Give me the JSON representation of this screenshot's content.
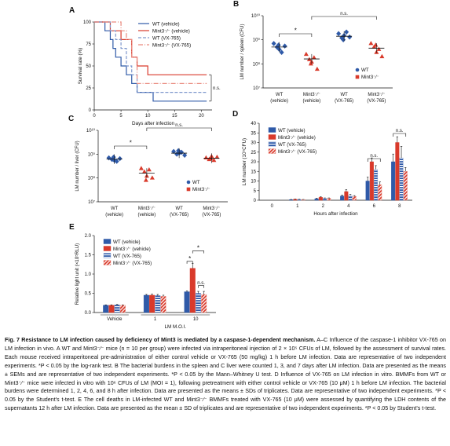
{
  "colors": {
    "wt": "#2f5aa8",
    "mint": "#d93a2b",
    "wt_vx": "#7e97cc",
    "mint_vx": "#e98a7f",
    "hatch": "#ffffff"
  },
  "panels": {
    "A": "A",
    "B": "B",
    "C": "C",
    "D": "D",
    "E": "E"
  },
  "panelA": {
    "ylabel": "Survival rate (%)",
    "xlabel": "Days after infection",
    "ns": "n.s.",
    "legend": [
      "WT (vehicle)",
      "Mint3⁻⁄⁻ (vehicle)",
      "WT (VX-765)",
      "Mint3⁻⁄⁻ (VX-765)"
    ]
  },
  "panelB": {
    "ylabel": "LM number / spleen (CFU)",
    "ns": "n.s.",
    "star": "*",
    "legend": [
      "WT",
      "Mint3⁻⁄⁻"
    ]
  },
  "panelC": {
    "ylabel": "LM number / liver (CFU)",
    "ns": "n.s.",
    "star": "*",
    "legend": [
      "WT",
      "Mint3⁻⁄⁻"
    ]
  },
  "panelD": {
    "ylabel": "LM number (10⁵CFU)",
    "xlabel": "Hours after infection",
    "ns": "n.s.",
    "legend": [
      "WT (vehicle)",
      "Mint3⁻⁄⁻ (vehicle)",
      "WT (VX-765)",
      "Mint3⁻⁄⁻ (VX-765)"
    ]
  },
  "panelE": {
    "ylabel": "Relative light unit (×10⁵RLU)",
    "ns": "n.s.",
    "star": "*",
    "vehicle": "Vehicle",
    "moi_title": "LM M.O.I.",
    "moi": [
      "1",
      "10"
    ],
    "legend": [
      "WT (vehicle)",
      "Mint3⁻⁄⁻ (vehicle)",
      "WT (VX-765)",
      "Mint3⁻⁄⁻ (VX-765)"
    ]
  },
  "group_labels": [
    [
      "WT",
      "(vehicle)"
    ],
    [
      "Mint3⁻⁄⁻",
      "(vehicle)"
    ],
    [
      "WT",
      "(VX-765)"
    ],
    [
      "Mint3⁻⁄⁻",
      "(VX-765)"
    ]
  ],
  "chart_data": [
    {
      "panel": "A",
      "type": "line",
      "x_label": "Days after infection",
      "y_label": "Survival rate (%)",
      "xlim": [
        0,
        22
      ],
      "ylim": [
        0,
        100
      ],
      "xticks": [
        0,
        5,
        10,
        15,
        20
      ],
      "yticks": [
        0,
        25,
        50,
        75,
        100
      ],
      "series": [
        {
          "name": "WT (vehicle)",
          "steps": [
            [
              0,
              100
            ],
            [
              2,
              90
            ],
            [
              3,
              80
            ],
            [
              3.5,
              70
            ],
            [
              4,
              60
            ],
            [
              5,
              50
            ],
            [
              6,
              40
            ],
            [
              7,
              30
            ],
            [
              8,
              20
            ],
            [
              11,
              10
            ],
            [
              21,
              10
            ]
          ]
        },
        {
          "name": "Mint3⁻⁄⁻ (vehicle)",
          "steps": [
            [
              0,
              100
            ],
            [
              3,
              90
            ],
            [
              5,
              80
            ],
            [
              7,
              60
            ],
            [
              8,
              50
            ],
            [
              10,
              40
            ],
            [
              21,
              40
            ]
          ]
        },
        {
          "name": "WT (VX-765)",
          "steps": [
            [
              0,
              100
            ],
            [
              3,
              90
            ],
            [
              4,
              80
            ],
            [
              5,
              70
            ],
            [
              6,
              50
            ],
            [
              7,
              40
            ],
            [
              8,
              20
            ],
            [
              21,
              20
            ]
          ]
        },
        {
          "name": "Mint3⁻⁄⁻ (VX-765)",
          "steps": [
            [
              0,
              100
            ],
            [
              5,
              90
            ],
            [
              6,
              80
            ],
            [
              7,
              60
            ],
            [
              8,
              30
            ],
            [
              21,
              30
            ]
          ]
        }
      ]
    },
    {
      "panel": "B",
      "type": "scatter",
      "y_label": "LM number / spleen (CFU)",
      "log_y": true,
      "ylim": [
        10000000.0,
        10000000000.0
      ],
      "yticks": [
        "10⁷",
        "10⁸",
        "10⁹",
        "10¹⁰"
      ],
      "groups": [
        {
          "name": "WT (vehicle)",
          "values": [
            700000000.0,
            500000000.0,
            400000000.0,
            300000000.0,
            550000000.0,
            600000000.0
          ],
          "mean": 500000000.0
        },
        {
          "name": "Mint3⁻⁄⁻ (vehicle)",
          "values": [
            250000000.0,
            150000000.0,
            120000000.0,
            180000000.0,
            60000000.0,
            100000000.0
          ],
          "mean": 160000000.0
        },
        {
          "name": "WT (VX-765)",
          "values": [
            1800000000.0,
            1200000000.0,
            1500000000.0,
            2100000000.0,
            1300000000.0,
            1000000000.0
          ],
          "mean": 1400000000.0
        },
        {
          "name": "Mint3⁻⁄⁻ (VX-765)",
          "values": [
            700000000.0,
            500000000.0,
            300000000.0,
            400000000.0,
            200000000.0,
            600000000.0
          ],
          "mean": 450000000.0
        }
      ]
    },
    {
      "panel": "C",
      "type": "scatter",
      "y_label": "LM number / liver (CFU)",
      "log_y": true,
      "ylim": [
        10000000.0,
        10000000000.0
      ],
      "yticks": [
        "10⁷",
        "10⁸",
        "10⁹",
        "10¹⁰"
      ],
      "groups": [
        {
          "name": "WT (vehicle)",
          "values": [
            700000000.0,
            600000000.0,
            550000000.0,
            500000000.0,
            650000000.0,
            750000000.0
          ],
          "mean": 620000000.0
        },
        {
          "name": "Mint3⁻⁄⁻ (vehicle)",
          "values": [
            250000000.0,
            180000000.0,
            120000000.0,
            220000000.0,
            100000000.0,
            80000000.0
          ],
          "mean": 160000000.0
        },
        {
          "name": "WT (VX-765)",
          "values": [
            1300000000.0,
            1000000000.0,
            1100000000.0,
            1200000000.0,
            900000000.0,
            1400000000.0
          ],
          "mean": 1100000000.0
        },
        {
          "name": "Mint3⁻⁄⁻ (VX-765)",
          "values": [
            700000000.0,
            600000000.0,
            800000000.0,
            550000000.0,
            750000000.0,
            650000000.0
          ],
          "mean": 680000000.0
        }
      ]
    },
    {
      "panel": "D",
      "type": "bar",
      "x_label": "Hours after infection",
      "y_label": "LM number (10⁵CFU)",
      "ylim": [
        0,
        40
      ],
      "yticks": [
        0,
        5,
        10,
        15,
        20,
        25,
        30,
        35,
        40
      ],
      "categories": [
        "0",
        "1",
        "2",
        "4",
        "6",
        "8"
      ],
      "series": [
        {
          "name": "WT (vehicle)",
          "values": [
            0,
            0.3,
            0.8,
            2.2,
            10,
            20
          ],
          "err": [
            0,
            0.1,
            0.2,
            0.5,
            2,
            4
          ]
        },
        {
          "name": "Mint3⁻⁄⁻ (vehicle)",
          "values": [
            0,
            0.5,
            1.5,
            4.5,
            20,
            30
          ],
          "err": [
            0,
            0.1,
            0.3,
            1,
            2,
            3
          ]
        },
        {
          "name": "WT (VX-765)",
          "values": [
            0,
            0.4,
            1.0,
            2.5,
            16,
            22
          ],
          "err": [
            0,
            0.1,
            0.2,
            0.5,
            2,
            6
          ]
        },
        {
          "name": "Mint3⁻⁄⁻ (VX-765)",
          "values": [
            0,
            0.3,
            1.0,
            2.0,
            8,
            15
          ],
          "err": [
            0,
            0.1,
            0.2,
            0.4,
            1.5,
            2
          ]
        }
      ]
    },
    {
      "panel": "E",
      "type": "bar",
      "y_label": "Relative light unit (×10⁵RLU)",
      "ylim": [
        0,
        2.0
      ],
      "yticks": [
        0,
        0.5,
        1.0,
        1.5,
        2.0
      ],
      "categories": [
        "Vehicle",
        "1",
        "10"
      ],
      "series": [
        {
          "name": "WT (vehicle)",
          "values": [
            0.19,
            0.45,
            0.54
          ],
          "err": [
            0.01,
            0.02,
            0.02
          ]
        },
        {
          "name": "Mint3⁻⁄⁻ (vehicle)",
          "values": [
            0.19,
            0.45,
            1.15
          ],
          "err": [
            0.01,
            0.03,
            0.13
          ]
        },
        {
          "name": "WT (VX-765)",
          "values": [
            0.2,
            0.44,
            0.5
          ],
          "err": [
            0.01,
            0.03,
            0.05
          ]
        },
        {
          "name": "Mint3⁻⁄⁻ (VX-765)",
          "values": [
            0.19,
            0.42,
            0.47
          ],
          "err": [
            0.01,
            0.03,
            0.08
          ]
        }
      ]
    }
  ],
  "caption": {
    "title": "Fig. 7 Resistance to LM infection caused by deficiency of Mint3 is mediated by a caspase-1-dependent mechanism.",
    "body": " A–C Influence of the caspase-1 inhibitor VX-765 on LM infection in vivo. A WT and Mint3⁻⁄⁻ mice (n = 10 per group) were infected via intraperitoneal injection of 2 × 10⁵ CFUs of LM, followed by the assessment of survival rates. Each mouse received intraperitoneal pre-administration of either control vehicle or VX-765 (50 mg/kg) 1 h before LM infection. Data are representative of two independent experiments. *P < 0.05 by the log-rank test. B The bacterial burdens in the spleen and C liver were counted 1, 3, and 7 days after LM infection. Data are presented as the means ± SEMs and are representative of two independent experiments. *P < 0.05 by the Mann–Whitney U test. D Influence of VX-765 on LM infection in vitro. BMMFs from WT or Mint3⁻⁄⁻ mice were infected in vitro with 10⁶ CFUs of LM (MOI = 1), following pretreatment with either control vehicle or VX-765 (10 μM) 1 h before LM infection. The bacterial burdens were determined 1, 2, 4, 6, and 8 h after infection. Data are presented as the means ± SDs of triplicates. Data are representative of two independent experiments. *P < 0.05 by the Student's t-test. E The cell deaths in LM-infected WT and Mint3⁻⁄⁻ BMMFs treated with VX-765 (10 μM) were assessed by quantifying the LDH contents of the supernatants 12 h after LM infection. Data are presented as the mean ± SD of triplicates and are representative of two independent experiments. *P < 0.05 by Student's t-test."
  }
}
